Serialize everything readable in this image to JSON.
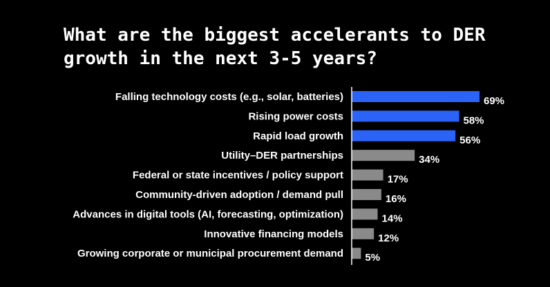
{
  "chart_data": {
    "type": "bar",
    "orientation": "horizontal",
    "title": "What are the biggest accelerants to DER growth in the next 3-5 years?",
    "categories": [
      "Falling technology costs (e.g., solar, batteries)",
      "Rising power costs",
      "Rapid load growth",
      "Utility–DER partnerships",
      "Federal or state incentives / policy support",
      "Community-driven adoption / demand pull",
      "Advances in digital tools (AI, forecasting, optimization)",
      "Innovative financing models",
      "Growing corporate or municipal procurement demand"
    ],
    "values": [
      69,
      58,
      56,
      34,
      17,
      16,
      14,
      12,
      5
    ],
    "value_labels": [
      "69%",
      "58%",
      "56%",
      "34%",
      "17%",
      "16%",
      "14%",
      "12%",
      "5%"
    ],
    "highlight_count": 3,
    "xlim": [
      0,
      69
    ],
    "colors": {
      "highlight": "#2b63f6",
      "default": "#8a8a8a",
      "axis": "#ffffff",
      "background": "#000000"
    },
    "grid": false,
    "legend": "none"
  }
}
